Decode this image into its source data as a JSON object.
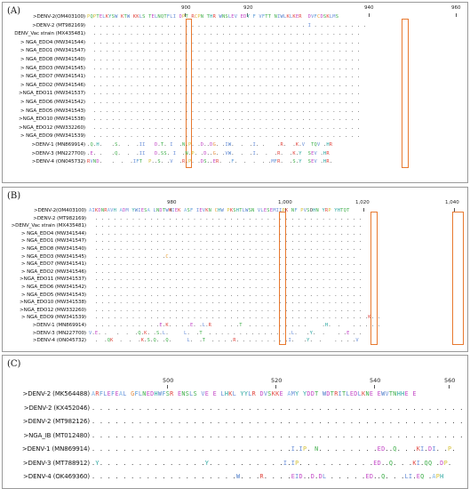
{
  "colors": {
    "highlight": "#e8792f",
    "border": "#9a9a9a"
  },
  "panels": [
    {
      "id": "a",
      "label": "(A)",
      "ticks": [
        "900",
        "920",
        "940",
        "960"
      ],
      "rows": [
        {
          "name": ">DENV-2(OM403100)",
          "seq": "PQPTELKYSW KTW KKLS TELNQTFLI DPT RCPN THR WNSLEV EDY F VFTT NIWLKLKER  DVFCDSKLMS"
        },
        {
          "name": ">DENV-2 (MT982169)",
          "seq": "  . . . . . . . . . . . . . . . . . . . . . . . . . . . . . . . . . . . I . . . . . . . . ."
        },
        {
          "name": "DENV_Vac strain (MX435481)",
          "seq": "  . . . . . . . . . . . . . . . . . . . . . . . . . . . . . . . . . . . . . . . . . . . ."
        },
        {
          "name": "> NGA_EDO4 (MW341544)",
          "seq": "  . . . . . . . . . . . . . . . . . . . . . . . . . . . . . . . . . . . . . . . . . . . ."
        },
        {
          "name": "> NGA_EDO1 (MW341547)",
          "seq": "  . . . . . . . . . . . . . . . . . . . . . . . . . . . . . . . . . . . . . . . . . . . ."
        },
        {
          "name": "> NGA_EDO8 (MW341540)",
          "seq": "  . . . . . . . . . . . . . . . . . . . . . . . . . . . . . . . . . . . . . . . . . . . ."
        },
        {
          "name": "> NGA_EDO3 (MW341545)",
          "seq": "  . . . . . . . . . . . . . . . . . . . . . . . . . . . . . . . . . . . . . . . . . . . ."
        },
        {
          "name": "> NGA_EDO7 (MW341541)",
          "seq": "  . . . . . . . . . . . . . . . . . . . . . . . . . . . . . . . . . . . . . . . . . . . ."
        },
        {
          "name": "> NGA_EDO2 (MW341546)",
          "seq": "  . . . . . . . . . . . . . . . . . . . . . . . . . . . . . . . . . . . . . . . . . . . ."
        },
        {
          "name": ">NGA_EDO11 (MW341537)",
          "seq": "  . . . . . . . . . . . . . . . . . . . . . . . . . . . . . . . . . . . . . . . . . . . ."
        },
        {
          "name": "> NGA_EDO6 (MW341542)",
          "seq": "  . . . . . . . . . . . . . . . . . . . . . . . . . . . . . . . . . . . . . . . . . . . ."
        },
        {
          "name": "> NGA_EDO5 (MW341543)",
          "seq": "  . . . . . . . . . . . . . . . . . . . . . . . . . . . . . . . . . . . . . . . . . . . ."
        },
        {
          "name": ">NGA_EDO10 (MW341538)",
          "seq": "  . . . . . . . . . . . . . . . . . . . . . . . . . . . . . . . . . . . . . . . . . . . ."
        },
        {
          "name": ">NGA_EDO12 (MW332260)",
          "seq": "  . . . . . . . . . . . . . . . . . . . . . . . . . . . . . . . . . . . . . . . . . . . ."
        },
        {
          "name": "> NGA_EDO9 (MW341539)",
          "seq": "  . . . . . . . . . . . . . . . . . . . . . . . . . . . . . . . . . . . . . . . . . . . ."
        },
        {
          "name": ">DENV-1 (MN869914)",
          "seq": ".Q.H.   .S.  .  .II   D.T. I  .N.P. .D..DG. .IW.  .  .I. .    .R.  .K.V  TQV .HR"
        },
        {
          "name": ">DENV-3 (MN227700)",
          "seq": ".E. .   .Q.  .  .II   D.SS. I  .N.P. .D..G. .VW.  .  .I.  .  .R.  .K.Y  SEV .HR"
        },
        {
          "name": ">DENV-4 (ON045732)",
          "seq": "RVND.   .  .  .IFT  P..S. .V  .R.P. .DS..ER.  .F.  .  .  . .MFR.  .S.Y  SEV .HR."
        }
      ]
    },
    {
      "id": "b",
      "label": "(B)",
      "ticks": [
        "980",
        "1,000",
        "1,020",
        "1,040"
      ],
      "rows": [
        {
          "name": ">DENV-2(OM403100)",
          "seq": "AIKDNRAVH ADM YWIESA LNDTWKIEK ASF IEVKN CHW PKSHTLWSN VLESEMIIPK NF PVSOHN YRP YHTQT"
        },
        {
          "name": ">DENV-2 (MT982169)",
          "seq": "  . . . . . . . . . . . . . . . . . . . . . . . . . . . . . . . . . . . . . . . . . . . ."
        },
        {
          "name": ">DENV_Vac strain (MX435481)",
          "seq": "  . . . . . . . . . . . . . . . . . . . . . . . . . . . . . . . . . . . . . . . . . . . ."
        },
        {
          "name": "> NGA_EDO4 (MW341544)",
          "seq": "  . . . . . . . . . . . . . . . . . . . . . . . . . . . . . . . . . . . . . . . . . . . ."
        },
        {
          "name": "> NGA_EDO1 (MW341547)",
          "seq": "  . . . . . . . . . . . . . . . . . . . . . . . . . . . . . . . . . . . . . . . . . . . ."
        },
        {
          "name": "> NGA_EDO8 (MW341540)",
          "seq": "  . . . . . . . . . . . . . . . . . . . . . . . . . . . . . . . . . . . . . . . . . . . ."
        },
        {
          "name": "> NGA_EDO3 (MW341545)",
          "seq": "  . . . . . . . . . . . .C. . . . . . . . . . . . . . . . . . . . . . . . . . . . . . ."
        },
        {
          "name": "> NGA_EDO7 (MW341541)",
          "seq": "  . . . . . . . . . . . . . . . . . . . . . . . . . . . . . . . . . . . . . . . . . . . ."
        },
        {
          "name": "> NGA_EDO2 (MW341546)",
          "seq": "  . . . . . . . . . . . . . . . . . . . . . . . . . . . . . . . . . . . . . . . . . . . ."
        },
        {
          "name": ">NGA_EDO11 (MW341537)",
          "seq": "  . . . . . . . . . . . . . . . . . . . . . . . . . . . . . . . . . . . . . . . . . . . ."
        },
        {
          "name": "> NGA_EDO6 (MW341542)",
          "seq": "  . . . . . . . . . . . . . . . . . . . . . . . . . . . . . . . . . . . . . . . . . . . ."
        },
        {
          "name": "> NGA_EDO5 (MW341543)",
          "seq": "  . . . . . . . . . . . . . . . . . . . . . . . . . . . . . . . . . . . . . . . . . . . ."
        },
        {
          "name": ">NGA_EDO10 (MW341538)",
          "seq": "  . . . . . . . . . . . . . . . . . . . . . . . . . . . . . . . . . . . . . . . . . . . ."
        },
        {
          "name": ">NGA_EDO12 (MW332260)",
          "seq": "  . . . . . . . . . . . . . . . . . . . . . . . . . . . . . . . . . . . . . . . . . . . ."
        },
        {
          "name": "> NGA_EDO9 (MW341539)",
          "seq": "  . . . . . . . . . . . . . . . . . . . . . . . . . . . . . . . . . . . . . . . . . . . . .K. ."
        },
        {
          "name": ">DENV-1 (MN869914)",
          "seq": "  . . . . . . . . . . .E.K. . . .E. .L.R    . . .T  . . . . . . . . . .     .H.  .    . . . . ."
        },
        {
          "name": ">DENV-3 (MN227700)",
          "seq": "V.E. .   .  .  .Q.K. .S.L.     L.  .T  . . . . . . . . . . . . . .L.   .Y.  .    . .E . ."
        },
        {
          "name": ">DENV-4 (ON045732)",
          "seq": "  .  .QK  .  .  .K.S.Q. .Q.     L.  .T  . . . .R. . . . . . . . .I.   .Y.  .    . . . .V"
        }
      ]
    },
    {
      "id": "c",
      "label": "(C)",
      "ticks": [
        "500",
        "520",
        "540",
        "560"
      ],
      "rows": [
        {
          "name": ">DENV-2 (MK564488)",
          "seq": "ARFLEFEAL GFLNEDHWFSR ENSLS VE E LHKL YYLR DVSKKE AMY YDDT WDTRITLEDLKNE EWVTNHHE E"
        },
        {
          "name": ">DENV-2 (KX452046)",
          "seq": ". . . . . . . . . . . . . . . . . . . . . . . . . . . . . . . . . . . . . . . . . . . . . . . ."
        },
        {
          "name": ">DENV-2 (MT982126)",
          "seq": ". . . . . . . . . . . . . . . . . . . . . . . . . . . . . . . . . . . . . . . . . . . . . . . ."
        },
        {
          "name": ">NGA_IB (MT012480)",
          "seq": ". . . . . . . . . . . . . . . . . . . . . . . . . . . . . . . . . . . . . . . . . . . . . . . ."
        },
        {
          "name": ">DENV-1 (MN869914)",
          "seq": ". . . . . . . . . . . . . . . . . . . . . . . . . .I.IP. N. . . . . . . .ED..Q. . .KI.DI. .P."
        },
        {
          "name": ">DENV-3 (MT788912)",
          "seq": ".Y. . . . . . . . . . . . . .Y. . . . . . . . . .I.IP. . . . . . . . . .ED..Q. . .KI.QQ .DP."
        },
        {
          "name": ">DENV-4 (OK469360)",
          "seq": ". . . . . . . . . . . . . . . . . . .W. . .R. . . .EID..D.DL . . . . .ED..Q. . .LI.EQ .APH"
        }
      ]
    }
  ]
}
